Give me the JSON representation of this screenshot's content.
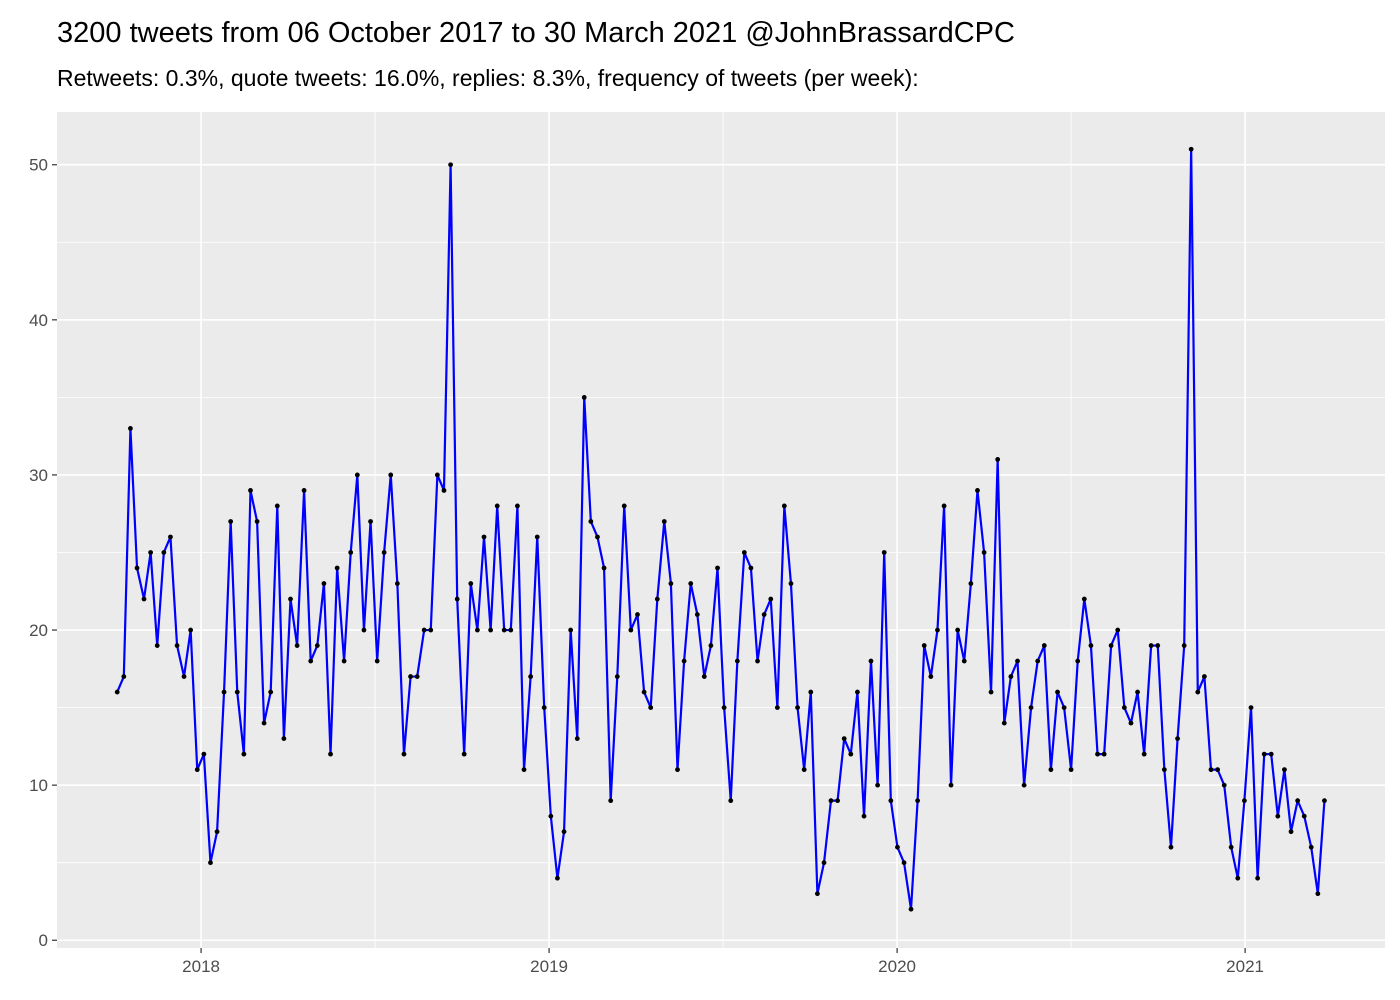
{
  "chart_data": {
    "type": "line",
    "title": "3200 tweets from 06 October 2017 to 30 March 2021 @JohnBrassardCPC",
    "subtitle": "Retweets: 0.3%, quote tweets: 16.0%, replies: 8.3%, frequency of tweets (per week):",
    "x": [
      2017.759,
      2017.778,
      2017.797,
      2017.816,
      2017.836,
      2017.855,
      2017.874,
      2017.893,
      2017.912,
      2017.931,
      2017.951,
      2017.97,
      2017.989,
      2018.008,
      2018.027,
      2018.046,
      2018.066,
      2018.085,
      2018.104,
      2018.123,
      2018.142,
      2018.161,
      2018.181,
      2018.2,
      2018.219,
      2018.238,
      2018.257,
      2018.276,
      2018.296,
      2018.315,
      2018.334,
      2018.353,
      2018.372,
      2018.391,
      2018.411,
      2018.43,
      2018.449,
      2018.468,
      2018.487,
      2018.506,
      2018.526,
      2018.545,
      2018.564,
      2018.583,
      2018.602,
      2018.621,
      2018.641,
      2018.66,
      2018.679,
      2018.698,
      2018.717,
      2018.736,
      2018.756,
      2018.775,
      2018.794,
      2018.813,
      2018.832,
      2018.851,
      2018.871,
      2018.89,
      2018.909,
      2018.928,
      2018.947,
      2018.966,
      2018.986,
      2019.005,
      2019.024,
      2019.043,
      2019.062,
      2019.081,
      2019.101,
      2019.12,
      2019.139,
      2019.158,
      2019.177,
      2019.196,
      2019.216,
      2019.235,
      2019.254,
      2019.273,
      2019.292,
      2019.311,
      2019.331,
      2019.35,
      2019.369,
      2019.388,
      2019.407,
      2019.426,
      2019.446,
      2019.465,
      2019.484,
      2019.503,
      2019.522,
      2019.541,
      2019.561,
      2019.58,
      2019.599,
      2019.618,
      2019.637,
      2019.656,
      2019.676,
      2019.695,
      2019.714,
      2019.733,
      2019.752,
      2019.771,
      2019.79,
      2019.81,
      2019.829,
      2019.848,
      2019.867,
      2019.886,
      2019.905,
      2019.925,
      2019.944,
      2019.963,
      2019.982,
      2020.001,
      2020.02,
      2020.04,
      2020.059,
      2020.078,
      2020.097,
      2020.116,
      2020.135,
      2020.155,
      2020.174,
      2020.193,
      2020.212,
      2020.231,
      2020.25,
      2020.27,
      2020.289,
      2020.308,
      2020.327,
      2020.346,
      2020.365,
      2020.385,
      2020.404,
      2020.423,
      2020.442,
      2020.461,
      2020.48,
      2020.5,
      2020.519,
      2020.538,
      2020.557,
      2020.576,
      2020.595,
      2020.615,
      2020.634,
      2020.653,
      2020.672,
      2020.691,
      2020.71,
      2020.73,
      2020.749,
      2020.768,
      2020.787,
      2020.806,
      2020.825,
      2020.845,
      2020.864,
      2020.883,
      2020.902,
      2020.921,
      2020.94,
      2020.96,
      2020.979,
      2020.998,
      2021.017,
      2021.036,
      2021.055,
      2021.075,
      2021.094,
      2021.113,
      2021.132,
      2021.151,
      2021.17,
      2021.19,
      2021.209,
      2021.228
    ],
    "values": [
      16,
      17,
      33,
      24,
      22,
      25,
      19,
      25,
      26,
      19,
      17,
      20,
      11,
      12,
      5,
      7,
      16,
      27,
      16,
      12,
      29,
      27,
      14,
      16,
      28,
      13,
      22,
      19,
      29,
      18,
      19,
      23,
      12,
      24,
      18,
      25,
      30,
      20,
      27,
      18,
      25,
      30,
      23,
      12,
      17,
      17,
      20,
      20,
      30,
      29,
      50,
      22,
      12,
      23,
      20,
      26,
      20,
      28,
      20,
      20,
      28,
      11,
      17,
      26,
      15,
      8,
      4,
      7,
      20,
      13,
      35,
      27,
      26,
      24,
      9,
      17,
      28,
      20,
      21,
      16,
      15,
      22,
      27,
      23,
      11,
      18,
      23,
      21,
      17,
      19,
      24,
      15,
      9,
      18,
      25,
      24,
      18,
      21,
      22,
      15,
      28,
      23,
      15,
      11,
      16,
      3,
      5,
      9,
      9,
      13,
      12,
      16,
      8,
      18,
      10,
      25,
      9,
      6,
      5,
      2,
      9,
      19,
      17,
      20,
      28,
      10,
      20,
      18,
      23,
      29,
      25,
      16,
      31,
      14,
      17,
      18,
      10,
      15,
      18,
      19,
      11,
      16,
      15,
      11,
      18,
      22,
      19,
      12,
      12,
      19,
      20,
      15,
      14,
      16,
      12,
      19,
      19,
      11,
      6,
      13,
      19,
      51,
      16,
      17,
      11,
      11,
      10,
      6,
      4,
      9,
      15,
      4,
      12,
      12,
      8,
      11,
      7,
      9,
      8,
      6,
      3,
      9
    ],
    "color": "#0000ff",
    "point_color": "#000000",
    "xlim": [
      2017.586,
      2021.402
    ],
    "xticks": [
      2018,
      2019,
      2020,
      2021
    ],
    "ylim": [
      -0.5,
      53.4
    ],
    "yticks": [
      0,
      10,
      20,
      30,
      40,
      50
    ],
    "grid": true,
    "background": "#ebebeb"
  }
}
